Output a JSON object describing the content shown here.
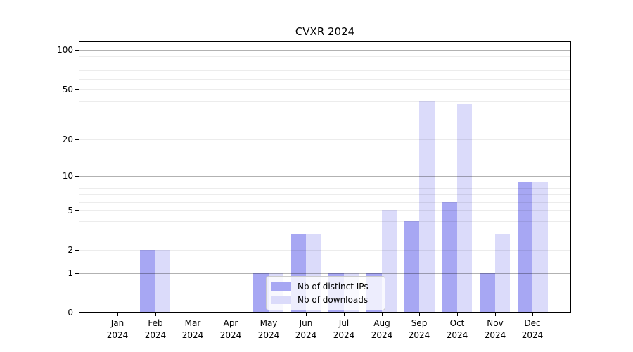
{
  "chart_data": {
    "type": "bar",
    "title": "CVXR 2024",
    "categories": [
      "Jan 2024",
      "Feb 2024",
      "Mar 2024",
      "Apr 2024",
      "May 2024",
      "Jun 2024",
      "Jul 2024",
      "Aug 2024",
      "Sep 2024",
      "Oct 2024",
      "Nov 2024",
      "Dec 2024"
    ],
    "x_tick_months": [
      "Jan",
      "Feb",
      "Mar",
      "Apr",
      "May",
      "Jun",
      "Jul",
      "Aug",
      "Sep",
      "Oct",
      "Nov",
      "Dec"
    ],
    "x_tick_year": "2024",
    "series": [
      {
        "name": "Nb of distinct IPs",
        "color": "#a7a7f3",
        "values": [
          0,
          2,
          0,
          0,
          1,
          3,
          1,
          1,
          4,
          6,
          1,
          9
        ]
      },
      {
        "name": "Nb of downloads",
        "color": "#dbdbfa",
        "values": [
          0,
          2,
          0,
          0,
          1,
          3,
          1,
          5,
          40,
          38,
          3,
          9
        ]
      }
    ],
    "y_axis": {
      "scale": "log1p",
      "tick_values": [
        0,
        1,
        2,
        5,
        10,
        20,
        50,
        100
      ],
      "major_gridlines": [
        1,
        10,
        100
      ],
      "minor_gridlines": [
        2,
        3,
        4,
        5,
        6,
        7,
        8,
        9,
        20,
        30,
        40,
        50,
        60,
        70,
        80,
        90
      ],
      "range": [
        0,
        100
      ]
    },
    "legend_position": "lower center",
    "grid": true
  }
}
